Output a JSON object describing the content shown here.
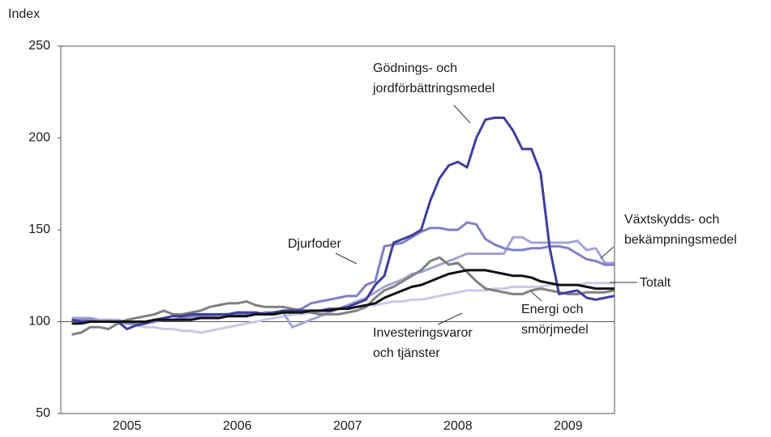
{
  "chart_data": {
    "type": "line",
    "ylabel": "Index",
    "x": [
      2005,
      2005.083,
      2005.167,
      2005.25,
      2005.333,
      2005.417,
      2005.5,
      2005.583,
      2005.667,
      2005.75,
      2005.833,
      2005.917,
      2006,
      2006.083,
      2006.167,
      2006.25,
      2006.333,
      2006.417,
      2006.5,
      2006.583,
      2006.667,
      2006.75,
      2006.833,
      2006.917,
      2007,
      2007.083,
      2007.167,
      2007.25,
      2007.333,
      2007.417,
      2007.5,
      2007.583,
      2007.667,
      2007.75,
      2007.833,
      2007.917,
      2008,
      2008.083,
      2008.167,
      2008.25,
      2008.333,
      2008.417,
      2008.5,
      2008.583,
      2008.667,
      2008.75,
      2008.833,
      2008.917,
      2009,
      2009.083,
      2009.167,
      2009.25,
      2009.333,
      2009.417,
      2009.5,
      2009.583,
      2009.667,
      2009.75,
      2009.833,
      2009.917
    ],
    "xlim": [
      2004.9,
      2009.92
    ],
    "xticks": [
      {
        "value": 2005.5,
        "label": "2005"
      },
      {
        "value": 2006.5,
        "label": "2006"
      },
      {
        "value": 2007.5,
        "label": "2007"
      },
      {
        "value": 2008.5,
        "label": "2008"
      },
      {
        "value": 2009.5,
        "label": "2009"
      }
    ],
    "ylim": [
      50,
      250
    ],
    "yticks": [
      50,
      100,
      150,
      200,
      250
    ],
    "grid": false,
    "hline": 100,
    "series": [
      {
        "name": "Investeringsvaror och tjänster",
        "color": "#c9c9e6",
        "values": [
          102,
          102,
          101,
          100,
          100,
          99,
          99,
          98,
          97,
          97,
          96,
          96,
          95,
          95,
          94,
          95,
          96,
          97,
          98,
          99,
          100,
          101,
          102,
          103,
          104,
          104,
          105,
          105,
          106,
          107,
          108,
          108,
          109,
          109,
          110,
          111,
          111,
          112,
          112,
          113,
          114,
          115,
          116,
          117,
          117,
          117,
          118,
          118,
          119,
          119,
          119,
          119,
          120,
          120,
          120,
          120,
          121,
          121,
          121,
          121
        ]
      },
      {
        "name": "Växtskydds- och bekämpningsmedel",
        "color": "#a3a3d6",
        "values": [
          102,
          102,
          102,
          101,
          101,
          101,
          100,
          100,
          100,
          100,
          101,
          101,
          101,
          102,
          102,
          103,
          103,
          103,
          103,
          104,
          104,
          104,
          105,
          105,
          97,
          99,
          101,
          103,
          105,
          107,
          109,
          111,
          113,
          116,
          119,
          121,
          123,
          126,
          127,
          129,
          131,
          133,
          135,
          137,
          137,
          137,
          137,
          137,
          146,
          146,
          143,
          143,
          143,
          143,
          143,
          144,
          139,
          140,
          132,
          132
        ]
      },
      {
        "name": "Djurfoder",
        "color": "#7f7fc6",
        "values": [
          101,
          101,
          101,
          100,
          100,
          100,
          99,
          99,
          99,
          100,
          101,
          101,
          102,
          103,
          103,
          103,
          104,
          104,
          104,
          104,
          104,
          105,
          105,
          105,
          106,
          107,
          110,
          111,
          112,
          113,
          114,
          114,
          120,
          122,
          141,
          142,
          143,
          146,
          149,
          151,
          151,
          150,
          150,
          154,
          153,
          145,
          142,
          140,
          139,
          139,
          140,
          140,
          141,
          141,
          140,
          137,
          134,
          133,
          131,
          131
        ]
      },
      {
        "name": "Energi och smörjmedel",
        "color": "#808080",
        "values": [
          93,
          94,
          97,
          97,
          96,
          99,
          101,
          102,
          103,
          104,
          106,
          104,
          104,
          105,
          106,
          108,
          109,
          110,
          110,
          111,
          109,
          108,
          108,
          108,
          107,
          106,
          105,
          104,
          104,
          104,
          105,
          106,
          108,
          113,
          117,
          119,
          122,
          125,
          128,
          133,
          135,
          131,
          132,
          127,
          122,
          118,
          117,
          116,
          115,
          115,
          117,
          118,
          117,
          116,
          115,
          115,
          116,
          116,
          116,
          117
        ]
      },
      {
        "name": "Gödnings- och jordförbättringsmedel",
        "color": "#3e3e9c",
        "values": [
          101,
          100,
          100,
          100,
          100,
          100,
          96,
          98,
          99,
          101,
          102,
          103,
          103,
          104,
          104,
          104,
          104,
          104,
          105,
          105,
          105,
          104,
          105,
          106,
          106,
          106,
          106,
          106,
          107,
          107,
          108,
          110,
          112,
          120,
          125,
          143,
          145,
          147,
          150,
          166,
          178,
          185,
          187,
          184,
          200,
          210,
          211,
          211,
          204,
          194,
          194,
          181,
          140,
          115,
          116,
          117,
          113,
          112,
          113,
          114
        ]
      },
      {
        "name": "Totalt",
        "color": "#111111",
        "values": [
          99,
          99,
          100,
          100,
          100,
          100,
          100,
          100,
          100,
          101,
          101,
          101,
          101,
          101,
          102,
          102,
          102,
          103,
          103,
          103,
          104,
          104,
          104,
          105,
          105,
          105,
          106,
          106,
          106,
          107,
          107,
          108,
          109,
          110,
          113,
          115,
          117,
          119,
          120,
          122,
          124,
          126,
          127,
          128,
          128,
          128,
          127,
          126,
          125,
          125,
          124,
          122,
          121,
          120,
          120,
          120,
          119,
          118,
          118,
          118
        ]
      }
    ],
    "annotations": [
      {
        "lines": [
          "Gödnings- och",
          "jordförbättringsmedel"
        ]
      },
      {
        "lines": [
          "Växtskydds- och",
          "bekämpningsmedel"
        ]
      },
      {
        "lines": [
          "Djurfoder"
        ]
      },
      {
        "lines": [
          "Totalt"
        ]
      },
      {
        "lines": [
          "Energi och",
          "smörjmedel"
        ]
      },
      {
        "lines": [
          "Investeringsvaror",
          "och tjänster"
        ]
      }
    ]
  }
}
